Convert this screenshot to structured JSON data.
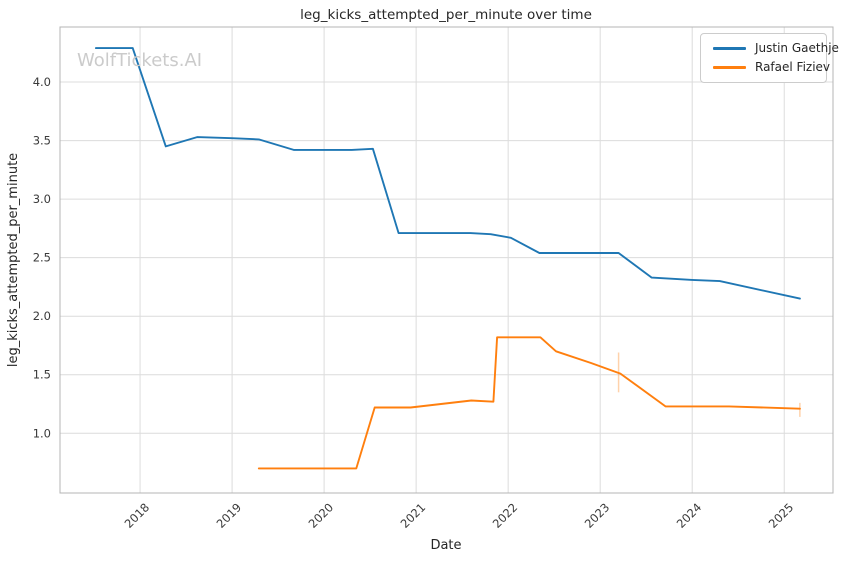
{
  "watermark": "WolfTickets.AI",
  "chart_data": {
    "type": "line",
    "title": "leg_kicks_attempted_per_minute over time",
    "xlabel": "Date",
    "ylabel": "leg_kicks_attempted_per_minute",
    "x_range": [
      2017.13,
      2025.53
    ],
    "y_range": [
      0.49,
      4.47
    ],
    "x_ticks": [
      2018,
      2019,
      2020,
      2021,
      2022,
      2023,
      2024,
      2025
    ],
    "y_ticks": [
      1.0,
      1.5,
      2.0,
      2.5,
      3.0,
      3.5,
      4.0
    ],
    "grid": true,
    "legend_position": "upper right",
    "series": [
      {
        "name": "Justin Gaethje",
        "color": "#1f77b4",
        "points": [
          [
            2017.52,
            4.29
          ],
          [
            2017.92,
            4.29
          ],
          [
            2018.28,
            3.45
          ],
          [
            2018.62,
            3.53
          ],
          [
            2019.0,
            3.52
          ],
          [
            2019.29,
            3.51
          ],
          [
            2019.67,
            3.42
          ],
          [
            2020.3,
            3.42
          ],
          [
            2020.53,
            3.43
          ],
          [
            2020.81,
            2.71
          ],
          [
            2021.59,
            2.71
          ],
          [
            2021.81,
            2.7
          ],
          [
            2022.03,
            2.67
          ],
          [
            2022.34,
            2.54
          ],
          [
            2023.2,
            2.54
          ],
          [
            2023.56,
            2.33
          ],
          [
            2024.0,
            2.31
          ],
          [
            2024.3,
            2.3
          ],
          [
            2025.17,
            2.15
          ]
        ],
        "error_bars": []
      },
      {
        "name": "Rafael Fiziev",
        "color": "#ff7f0e",
        "points": [
          [
            2019.29,
            0.7
          ],
          [
            2020.35,
            0.7
          ],
          [
            2020.55,
            1.22
          ],
          [
            2020.94,
            1.22
          ],
          [
            2021.27,
            1.25
          ],
          [
            2021.6,
            1.28
          ],
          [
            2021.84,
            1.27
          ],
          [
            2021.88,
            1.82
          ],
          [
            2022.35,
            1.82
          ],
          [
            2022.52,
            1.7
          ],
          [
            2022.9,
            1.6
          ],
          [
            2023.22,
            1.51
          ],
          [
            2023.71,
            1.23
          ],
          [
            2024.4,
            1.23
          ],
          [
            2025.17,
            1.21
          ]
        ],
        "error_bars": [
          {
            "x": 2023.2,
            "y_low": 1.35,
            "y_high": 1.69
          },
          {
            "x": 2025.17,
            "y_low": 1.14,
            "y_high": 1.26
          }
        ]
      }
    ]
  },
  "colors": {
    "grid": "#dcdcdc",
    "spine": "#b4b4b4",
    "text": "#262626",
    "tick_text": "#3a3a3a",
    "watermark": "#cbcbcb",
    "background": "#ffffff"
  }
}
